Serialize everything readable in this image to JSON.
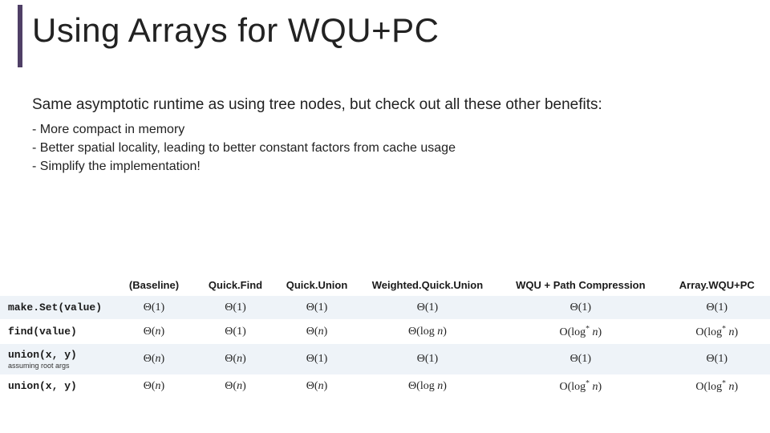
{
  "title": "Using Arrays for WQU+PC",
  "intro": "Same asymptotic runtime as using tree nodes, but check out all these other benefits:",
  "bullets": [
    "- More compact in memory",
    "- Better spatial locality, leading to better constant factors from cache usage",
    "- Simplify the implementation!"
  ],
  "table": {
    "columns": [
      "(Baseline)",
      "Quick.Find",
      "Quick.Union",
      "Weighted.Quick.Union",
      "WQU + Path Compression",
      "Array.WQU+PC"
    ],
    "col_classes": [
      "c",
      "c",
      "c",
      "wqu",
      "wqupc",
      "arr"
    ],
    "rows": [
      {
        "label": "make.Set(value)",
        "note": "",
        "cells": [
          "Θ(1)",
          "Θ(1)",
          "Θ(1)",
          "Θ(1)",
          "Θ(1)",
          "Θ(1)"
        ]
      },
      {
        "label": "find(value)",
        "note": "",
        "cells": [
          "Θ(n)",
          "Θ(1)",
          "Θ(n)",
          "Θ(log n)",
          "O(log* n)",
          "O(log* n)"
        ]
      },
      {
        "label": "union(x, y)",
        "note": "assuming root args",
        "cells": [
          "Θ(n)",
          "Θ(n)",
          "Θ(1)",
          "Θ(1)",
          "Θ(1)",
          "Θ(1)"
        ]
      },
      {
        "label": "union(x, y)",
        "note": "",
        "cells": [
          "Θ(n)",
          "Θ(n)",
          "Θ(n)",
          "Θ(log n)",
          "O(log* n)",
          "O(log* n)"
        ]
      }
    ],
    "band_colors": {
      "a": "#eef3f8",
      "b": "#ffffff"
    }
  },
  "style": {
    "accent_color": "#4f3f66",
    "title_fontsize": 42,
    "intro_fontsize": 19,
    "bullet_fontsize": 16,
    "table_fontsize": 13,
    "background": "#ffffff"
  }
}
